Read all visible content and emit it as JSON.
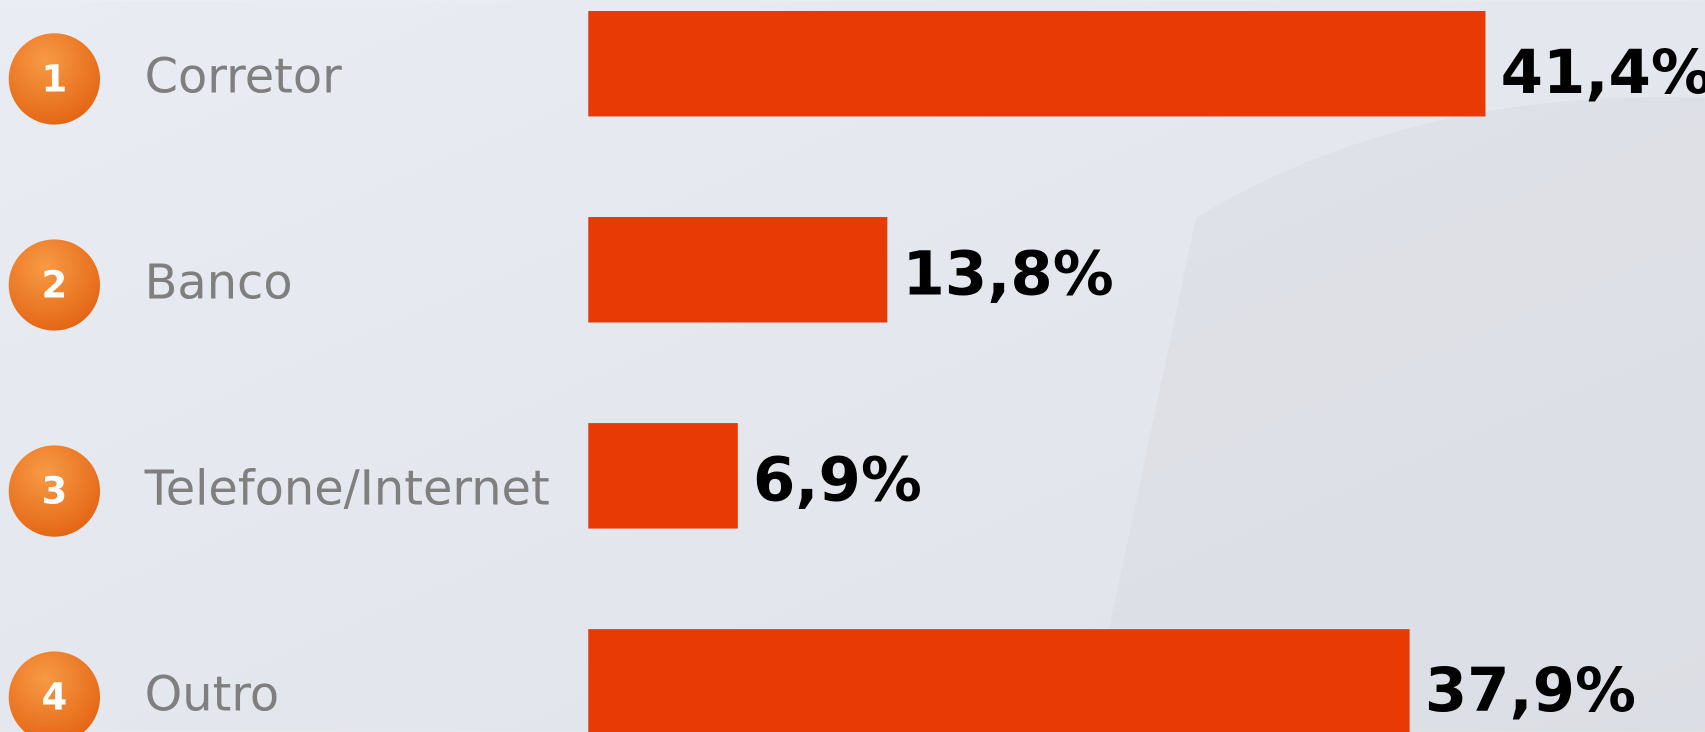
{
  "chart_data": {
    "type": "bar",
    "orientation": "horizontal",
    "ranks": [
      1,
      2,
      3,
      4
    ],
    "categories": [
      "Corretor",
      "Banco",
      "Telefone/Internet",
      "Outro"
    ],
    "values": [
      41.4,
      13.8,
      6.9,
      37.9
    ],
    "value_labels": [
      "41,4%",
      "13,8%",
      "6,9%",
      "37,9%"
    ],
    "color": "#e83a04"
  }
}
